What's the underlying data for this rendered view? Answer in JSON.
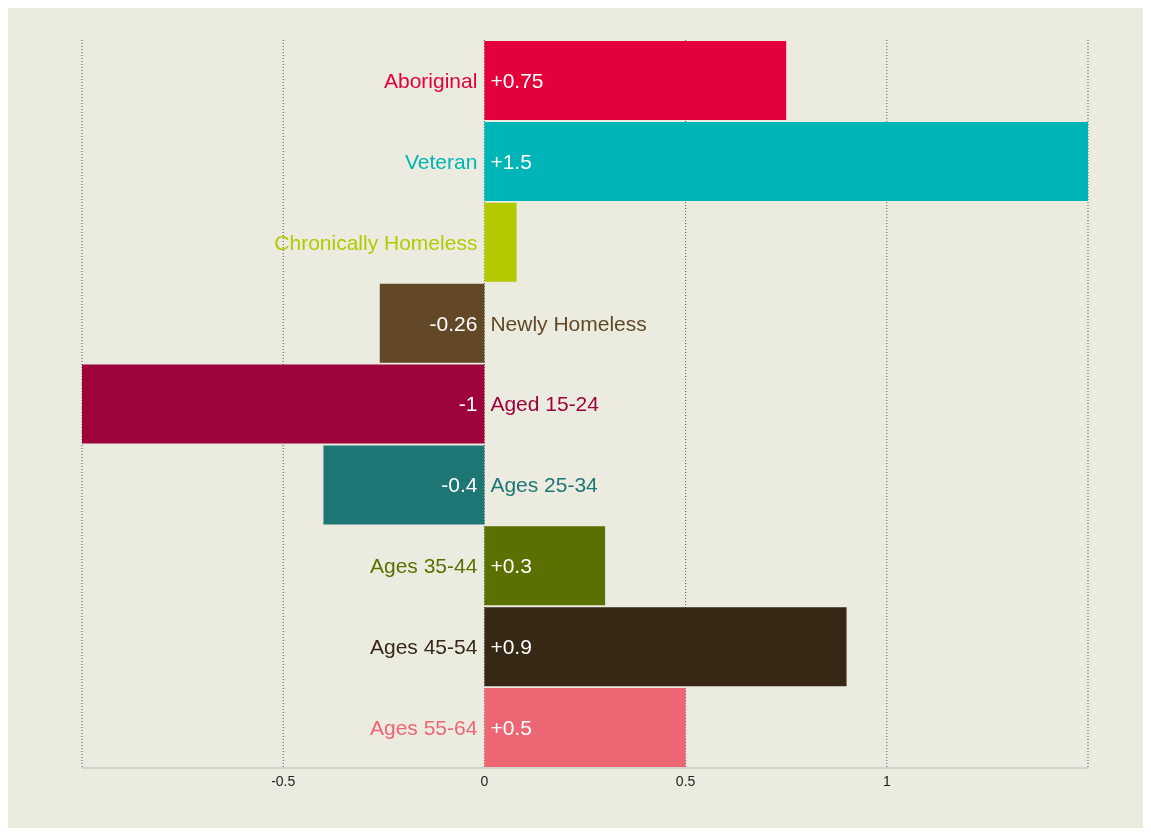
{
  "chart_data": {
    "type": "bar",
    "orientation": "horizontal",
    "categories": [
      "Aboriginal",
      "Veteran",
      "Chronically Homeless",
      "Newly Homeless",
      "Aged 15-24",
      "Ages 25-34",
      "Ages 35-44",
      "Ages 45-54",
      "Ages 55-64"
    ],
    "values": [
      0.75,
      1.5,
      0.08,
      -0.26,
      -1,
      -0.4,
      0.3,
      0.9,
      0.5
    ],
    "value_labels": [
      "+0.75",
      "+1.5",
      null,
      "-0.26",
      "-1",
      "-0.4",
      "+0.3",
      "+0.9",
      "+0.5"
    ],
    "colors": [
      "#e4003a",
      "#00b5b8",
      "#b5c900",
      "#624827",
      "#9e043b",
      "#1e7775",
      "#5a7000",
      "#372816",
      "#ec6674"
    ],
    "xlim": [
      -1,
      1.5
    ],
    "xticks": [
      -0.5,
      0,
      0.5,
      1
    ],
    "grid": "x"
  }
}
